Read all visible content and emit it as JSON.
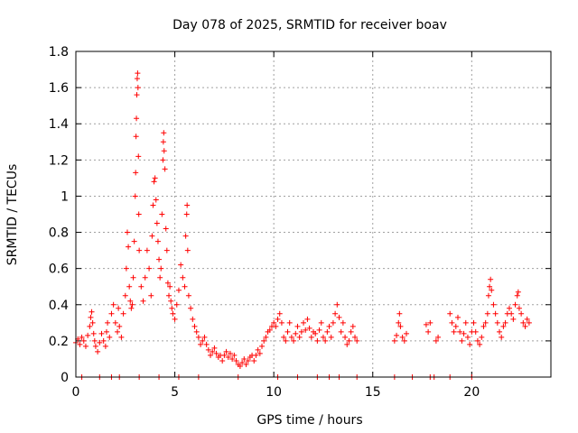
{
  "chart_data": {
    "type": "scatter",
    "title": "Day 078 of 2025, SRMTID for receiver boav",
    "xlabel": "GPS time / hours",
    "ylabel": "SRMTID / TECUs",
    "xlim": [
      0,
      24
    ],
    "ylim": [
      0,
      1.8
    ],
    "x_ticks": [
      0,
      5,
      10,
      15,
      20
    ],
    "y_ticks": [
      0,
      0.2,
      0.4,
      0.6,
      0.8,
      1,
      1.2,
      1.4,
      1.6,
      1.8
    ],
    "x_tick_labels": [
      "0",
      "5",
      "10",
      "15",
      "20"
    ],
    "y_tick_labels": [
      "0",
      "0.2",
      "0.4",
      "0.6",
      "0.8",
      "1",
      "1.2",
      "1.4",
      "1.6",
      "1.8"
    ],
    "grid": true,
    "marker": "+",
    "color": "#ff0000",
    "series": [
      {
        "name": "SRMTID",
        "points": [
          [
            0.0,
            0.19
          ],
          [
            0.1,
            0.21
          ],
          [
            0.2,
            0.18
          ],
          [
            0.3,
            0.22
          ],
          [
            0.4,
            0.2
          ],
          [
            0.5,
            0.17
          ],
          [
            0.6,
            0.23
          ],
          [
            0.7,
            0.28
          ],
          [
            0.75,
            0.33
          ],
          [
            0.8,
            0.36
          ],
          [
            0.85,
            0.3
          ],
          [
            0.9,
            0.24
          ],
          [
            0.95,
            0.2
          ],
          [
            1.0,
            0.17
          ],
          [
            1.1,
            0.14
          ],
          [
            1.2,
            0.19
          ],
          [
            1.3,
            0.24
          ],
          [
            1.4,
            0.2
          ],
          [
            1.5,
            0.17
          ],
          [
            1.55,
            0.25
          ],
          [
            1.6,
            0.3
          ],
          [
            1.7,
            0.22
          ],
          [
            1.8,
            0.35
          ],
          [
            1.9,
            0.4
          ],
          [
            2.0,
            0.3
          ],
          [
            2.1,
            0.25
          ],
          [
            2.15,
            0.38
          ],
          [
            2.2,
            0.28
          ],
          [
            2.3,
            0.22
          ],
          [
            2.4,
            0.35
          ],
          [
            2.5,
            0.45
          ],
          [
            2.55,
            0.6
          ],
          [
            2.6,
            0.8
          ],
          [
            2.65,
            0.72
          ],
          [
            2.7,
            0.5
          ],
          [
            2.75,
            0.42
          ],
          [
            2.8,
            0.38
          ],
          [
            2.85,
            0.4
          ],
          [
            2.9,
            0.55
          ],
          [
            2.95,
            0.75
          ],
          [
            3.0,
            1.0
          ],
          [
            3.02,
            1.13
          ],
          [
            3.04,
            1.33
          ],
          [
            3.06,
            1.43
          ],
          [
            3.08,
            1.56
          ],
          [
            3.1,
            1.65
          ],
          [
            3.12,
            1.68
          ],
          [
            3.14,
            1.6
          ],
          [
            3.16,
            1.22
          ],
          [
            3.18,
            0.9
          ],
          [
            3.2,
            0.7
          ],
          [
            3.3,
            0.5
          ],
          [
            3.4,
            0.42
          ],
          [
            3.5,
            0.55
          ],
          [
            3.6,
            0.7
          ],
          [
            3.7,
            0.6
          ],
          [
            3.8,
            0.45
          ],
          [
            3.85,
            0.78
          ],
          [
            3.9,
            0.95
          ],
          [
            3.95,
            1.08
          ],
          [
            4.0,
            1.1
          ],
          [
            4.05,
            0.98
          ],
          [
            4.1,
            0.85
          ],
          [
            4.15,
            0.75
          ],
          [
            4.2,
            0.65
          ],
          [
            4.25,
            0.55
          ],
          [
            4.3,
            0.6
          ],
          [
            4.35,
            0.9
          ],
          [
            4.4,
            1.2
          ],
          [
            4.42,
            1.3
          ],
          [
            4.44,
            1.35
          ],
          [
            4.46,
            1.25
          ],
          [
            4.5,
            1.15
          ],
          [
            4.55,
            0.82
          ],
          [
            4.6,
            0.7
          ],
          [
            4.65,
            0.52
          ],
          [
            4.7,
            0.45
          ],
          [
            4.75,
            0.5
          ],
          [
            4.8,
            0.42
          ],
          [
            4.85,
            0.38
          ],
          [
            4.9,
            0.35
          ],
          [
            5.0,
            0.32
          ],
          [
            5.1,
            0.4
          ],
          [
            5.2,
            0.48
          ],
          [
            5.3,
            0.62
          ],
          [
            5.4,
            0.55
          ],
          [
            5.5,
            0.5
          ],
          [
            5.55,
            0.78
          ],
          [
            5.6,
            0.9
          ],
          [
            5.62,
            0.95
          ],
          [
            5.65,
            0.7
          ],
          [
            5.7,
            0.45
          ],
          [
            5.8,
            0.38
          ],
          [
            5.9,
            0.32
          ],
          [
            6.0,
            0.28
          ],
          [
            6.1,
            0.25
          ],
          [
            6.2,
            0.22
          ],
          [
            6.3,
            0.18
          ],
          [
            6.4,
            0.2
          ],
          [
            6.5,
            0.22
          ],
          [
            6.6,
            0.18
          ],
          [
            6.7,
            0.15
          ],
          [
            6.8,
            0.12
          ],
          [
            6.9,
            0.14
          ],
          [
            7.0,
            0.16
          ],
          [
            7.1,
            0.13
          ],
          [
            7.2,
            0.11
          ],
          [
            7.3,
            0.12
          ],
          [
            7.4,
            0.09
          ],
          [
            7.5,
            0.12
          ],
          [
            7.6,
            0.14
          ],
          [
            7.7,
            0.11
          ],
          [
            7.8,
            0.13
          ],
          [
            7.9,
            0.1
          ],
          [
            8.0,
            0.12
          ],
          [
            8.1,
            0.09
          ],
          [
            8.2,
            0.07
          ],
          [
            8.3,
            0.06
          ],
          [
            8.4,
            0.08
          ],
          [
            8.5,
            0.1
          ],
          [
            8.6,
            0.07
          ],
          [
            8.7,
            0.09
          ],
          [
            8.8,
            0.11
          ],
          [
            8.9,
            0.12
          ],
          [
            9.0,
            0.09
          ],
          [
            9.1,
            0.12
          ],
          [
            9.2,
            0.15
          ],
          [
            9.3,
            0.13
          ],
          [
            9.4,
            0.17
          ],
          [
            9.5,
            0.2
          ],
          [
            9.6,
            0.22
          ],
          [
            9.7,
            0.25
          ],
          [
            9.8,
            0.26
          ],
          [
            9.9,
            0.28
          ],
          [
            10.0,
            0.3
          ],
          [
            10.1,
            0.28
          ],
          [
            10.2,
            0.32
          ],
          [
            10.3,
            0.35
          ],
          [
            10.4,
            0.3
          ],
          [
            10.5,
            0.22
          ],
          [
            10.6,
            0.2
          ],
          [
            10.7,
            0.25
          ],
          [
            10.8,
            0.3
          ],
          [
            10.9,
            0.22
          ],
          [
            11.0,
            0.2
          ],
          [
            11.1,
            0.24
          ],
          [
            11.2,
            0.28
          ],
          [
            11.3,
            0.22
          ],
          [
            11.4,
            0.25
          ],
          [
            11.5,
            0.3
          ],
          [
            11.6,
            0.26
          ],
          [
            11.7,
            0.32
          ],
          [
            11.8,
            0.27
          ],
          [
            11.9,
            0.22
          ],
          [
            12.0,
            0.25
          ],
          [
            12.1,
            0.24
          ],
          [
            12.2,
            0.2
          ],
          [
            12.3,
            0.26
          ],
          [
            12.4,
            0.3
          ],
          [
            12.5,
            0.22
          ],
          [
            12.6,
            0.2
          ],
          [
            12.7,
            0.25
          ],
          [
            12.8,
            0.28
          ],
          [
            12.9,
            0.22
          ],
          [
            13.0,
            0.3
          ],
          [
            13.1,
            0.35
          ],
          [
            13.2,
            0.4
          ],
          [
            13.3,
            0.33
          ],
          [
            13.4,
            0.25
          ],
          [
            13.5,
            0.3
          ],
          [
            13.6,
            0.22
          ],
          [
            13.7,
            0.18
          ],
          [
            13.8,
            0.2
          ],
          [
            13.9,
            0.25
          ],
          [
            14.0,
            0.28
          ],
          [
            14.1,
            0.22
          ],
          [
            14.2,
            0.2
          ],
          [
            16.1,
            0.2
          ],
          [
            16.2,
            0.23
          ],
          [
            16.3,
            0.3
          ],
          [
            16.35,
            0.35
          ],
          [
            16.4,
            0.28
          ],
          [
            16.5,
            0.22
          ],
          [
            16.6,
            0.2
          ],
          [
            16.7,
            0.24
          ],
          [
            17.7,
            0.29
          ],
          [
            17.8,
            0.25
          ],
          [
            17.9,
            0.3
          ],
          [
            18.2,
            0.2
          ],
          [
            18.3,
            0.22
          ],
          [
            18.9,
            0.35
          ],
          [
            19.0,
            0.3
          ],
          [
            19.1,
            0.25
          ],
          [
            19.2,
            0.28
          ],
          [
            19.3,
            0.33
          ],
          [
            19.4,
            0.25
          ],
          [
            19.5,
            0.2
          ],
          [
            19.6,
            0.24
          ],
          [
            19.7,
            0.3
          ],
          [
            19.8,
            0.22
          ],
          [
            19.9,
            0.18
          ],
          [
            20.0,
            0.25
          ],
          [
            20.1,
            0.3
          ],
          [
            20.2,
            0.25
          ],
          [
            20.3,
            0.2
          ],
          [
            20.4,
            0.18
          ],
          [
            20.5,
            0.22
          ],
          [
            20.6,
            0.28
          ],
          [
            20.7,
            0.3
          ],
          [
            20.8,
            0.35
          ],
          [
            20.85,
            0.45
          ],
          [
            20.9,
            0.5
          ],
          [
            20.95,
            0.54
          ],
          [
            21.0,
            0.48
          ],
          [
            21.1,
            0.4
          ],
          [
            21.2,
            0.35
          ],
          [
            21.3,
            0.3
          ],
          [
            21.4,
            0.25
          ],
          [
            21.5,
            0.22
          ],
          [
            21.6,
            0.28
          ],
          [
            21.7,
            0.3
          ],
          [
            21.8,
            0.35
          ],
          [
            21.9,
            0.38
          ],
          [
            22.0,
            0.35
          ],
          [
            22.1,
            0.32
          ],
          [
            22.2,
            0.4
          ],
          [
            22.3,
            0.45
          ],
          [
            22.35,
            0.47
          ],
          [
            22.4,
            0.38
          ],
          [
            22.5,
            0.35
          ],
          [
            22.6,
            0.3
          ],
          [
            22.7,
            0.28
          ],
          [
            22.8,
            0.32
          ],
          [
            22.9,
            0.3
          ],
          [
            0.3,
            0.0
          ],
          [
            1.2,
            0.0
          ],
          [
            1.8,
            0.0
          ],
          [
            2.2,
            0.0
          ],
          [
            3.2,
            0.0
          ],
          [
            4.2,
            0.0
          ],
          [
            5.2,
            0.0
          ],
          [
            6.2,
            0.0
          ],
          [
            8.2,
            0.0
          ],
          [
            10.2,
            0.0
          ],
          [
            11.2,
            0.0
          ],
          [
            12.2,
            0.0
          ],
          [
            12.8,
            0.0
          ],
          [
            13.3,
            0.0
          ],
          [
            14.2,
            0.0
          ],
          [
            16.1,
            0.0
          ],
          [
            17.0,
            0.0
          ],
          [
            17.9,
            0.0
          ],
          [
            18.1,
            0.0
          ],
          [
            18.9,
            0.0
          ],
          [
            20.0,
            0.0
          ]
        ]
      }
    ]
  }
}
